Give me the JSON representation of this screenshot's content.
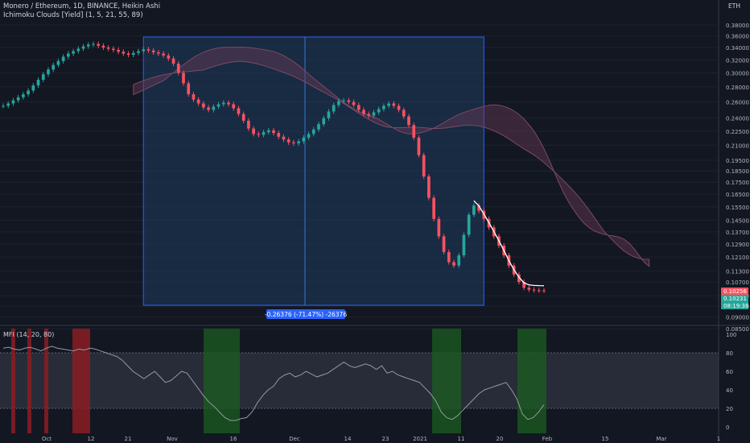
{
  "header": {
    "symbol_line": "Monero / Ethereum, 1D, BINANCE, Heikin Ashi",
    "indicator_line": "Ichimoku Clouds [Yield] (1, 5, 21, 55, 89)",
    "currency": "ETH"
  },
  "measure_label": "-0.26376 (-71.47%) -26376",
  "mfi_label": "MFI (14, 20, 80)",
  "price_axis": {
    "ticks": [
      "0.38000",
      "0.36000",
      "0.34000",
      "0.32000",
      "0.30000",
      "0.28000",
      "0.26000",
      "0.24000",
      "0.22500",
      "0.21000",
      "0.19500",
      "0.18500",
      "0.17500",
      "0.16500",
      "0.15500",
      "0.14500",
      "0.13700",
      "0.12900",
      "0.12100",
      "0.11300",
      "0.10700",
      "0.10000",
      "0.09500",
      "0.09000",
      "0.08500"
    ],
    "badges": [
      {
        "text": "0.10256",
        "color": "#f7525f"
      },
      {
        "text": "0.10231",
        "color": "#26a69a"
      },
      {
        "text": "08:19:38",
        "color": "#26a69a"
      }
    ]
  },
  "mfi_axis": {
    "ticks": [
      "100",
      "80",
      "60",
      "40",
      "20",
      "0"
    ]
  },
  "time_axis": {
    "ticks": [
      "Oct",
      "12",
      "21",
      "Nov",
      "16",
      "Dec",
      "14",
      "23",
      "2021",
      "11",
      "20",
      "Feb",
      "15",
      "Mar",
      "1"
    ]
  },
  "colors": {
    "up": "#26a69a",
    "down": "#f7525f",
    "green_zone": "#1b5e20",
    "red_zone": "#8b1c23",
    "measure": "#2962ff"
  },
  "chart_data": {
    "type": "candlestick",
    "series": [
      {
        "name": "Heikin Ashi",
        "close": [
          0.255,
          0.258,
          0.262,
          0.266,
          0.27,
          0.275,
          0.282,
          0.29,
          0.298,
          0.305,
          0.312,
          0.318,
          0.325,
          0.33,
          0.334,
          0.338,
          0.342,
          0.345,
          0.346,
          0.343,
          0.34,
          0.338,
          0.336,
          0.333,
          0.33,
          0.328,
          0.331,
          0.334,
          0.337,
          0.335,
          0.332,
          0.33,
          0.327,
          0.322,
          0.314,
          0.3,
          0.285,
          0.27,
          0.263,
          0.258,
          0.253,
          0.25,
          0.254,
          0.257,
          0.259,
          0.257,
          0.252,
          0.245,
          0.237,
          0.228,
          0.222,
          0.221,
          0.224,
          0.226,
          0.223,
          0.219,
          0.216,
          0.213,
          0.212,
          0.214,
          0.218,
          0.222,
          0.227,
          0.233,
          0.24,
          0.248,
          0.256,
          0.261,
          0.262,
          0.26,
          0.256,
          0.25,
          0.245,
          0.243,
          0.247,
          0.251,
          0.255,
          0.258,
          0.255,
          0.25,
          0.242,
          0.232,
          0.218,
          0.2,
          0.18,
          0.162,
          0.146,
          0.134,
          0.124,
          0.118,
          0.116,
          0.122,
          0.135,
          0.149,
          0.156,
          0.152,
          0.146,
          0.14,
          0.134,
          0.128,
          0.122,
          0.116,
          0.111,
          0.107,
          0.104,
          0.103,
          0.1027,
          0.1026,
          0.10256
        ]
      },
      {
        "name": "MFI",
        "values": [
          85,
          86,
          84,
          83,
          85,
          86,
          84,
          82,
          85,
          87,
          85,
          84,
          83,
          82,
          84,
          83,
          85,
          84,
          82,
          80,
          78,
          76,
          72,
          66,
          60,
          56,
          52,
          56,
          60,
          54,
          48,
          50,
          55,
          60,
          58,
          50,
          42,
          34,
          27,
          22,
          16,
          10,
          7,
          7,
          9,
          10,
          16,
          26,
          34,
          40,
          44,
          52,
          56,
          58,
          54,
          56,
          60,
          57,
          54,
          56,
          58,
          62,
          66,
          70,
          66,
          64,
          66,
          68,
          66,
          62,
          66,
          58,
          60,
          56,
          54,
          52,
          50,
          48,
          42,
          36,
          28,
          16,
          10,
          8,
          12,
          18,
          24,
          30,
          36,
          40,
          42,
          44,
          46,
          48,
          40,
          30,
          14,
          8,
          10,
          16,
          24
        ]
      }
    ],
    "price_range": [
      0.085,
      0.38
    ],
    "mfi_range": [
      0,
      100
    ],
    "mfi_bands": [
      20,
      80
    ],
    "measure": {
      "change": -0.26376,
      "percent": -71.47
    }
  }
}
